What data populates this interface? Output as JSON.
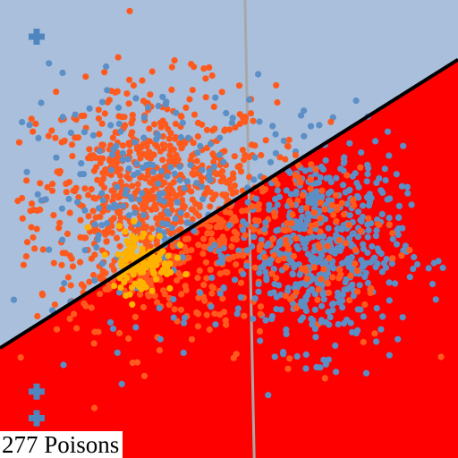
{
  "caption": "277 Poisons",
  "colors": {
    "region_upper": "#aabfdc",
    "region_lower": "#ff0000",
    "boundary_dark": "#000000",
    "boundary_gray": "#a8a8a8",
    "class_blue": "#5b8fc6",
    "class_orange": "#ff5a1e",
    "class_yellow": "#ffb300",
    "marker": "#4f86bf"
  },
  "chart_data": {
    "type": "scatter",
    "xlim": [
      0,
      1
    ],
    "ylim": [
      0,
      1
    ],
    "grid": false,
    "legend": "none",
    "regions": [
      {
        "name": "upper",
        "color": "#aabfdc"
      },
      {
        "name": "lower",
        "color": "#ff0000"
      }
    ],
    "boundaries": [
      {
        "name": "dark-boundary",
        "color": "#000000",
        "points": [
          [
            0.0,
            0.24
          ],
          [
            1.0,
            0.87
          ]
        ]
      },
      {
        "name": "gray-boundary",
        "color": "#a8a8a8",
        "points": [
          [
            0.535,
            1.0
          ],
          [
            0.555,
            0.0
          ]
        ]
      }
    ],
    "markers": [
      {
        "symbol": "+",
        "x": 0.08,
        "y": 0.92
      },
      {
        "symbol": "+",
        "x": 0.08,
        "y": 0.145
      },
      {
        "symbol": "+",
        "x": 0.08,
        "y": 0.087
      }
    ],
    "clusters": [
      {
        "name": "orange-main",
        "color": "#ff5a1e",
        "center": [
          0.34,
          0.55
        ],
        "spread": [
          0.13,
          0.13
        ],
        "count": 900
      },
      {
        "name": "blue-left",
        "color": "#5b8fc6",
        "center": [
          0.33,
          0.57
        ],
        "spread": [
          0.14,
          0.13
        ],
        "count": 200
      },
      {
        "name": "blue-right",
        "color": "#5b8fc6",
        "center": [
          0.7,
          0.46
        ],
        "spread": [
          0.09,
          0.11
        ],
        "count": 560
      },
      {
        "name": "orange-right",
        "color": "#ff5a1e",
        "center": [
          0.68,
          0.48
        ],
        "spread": [
          0.1,
          0.12
        ],
        "count": 140
      },
      {
        "name": "yellow-core",
        "color": "#ffb300",
        "center": [
          0.31,
          0.43
        ],
        "spread": [
          0.035,
          0.035
        ],
        "count": 110
      }
    ]
  }
}
